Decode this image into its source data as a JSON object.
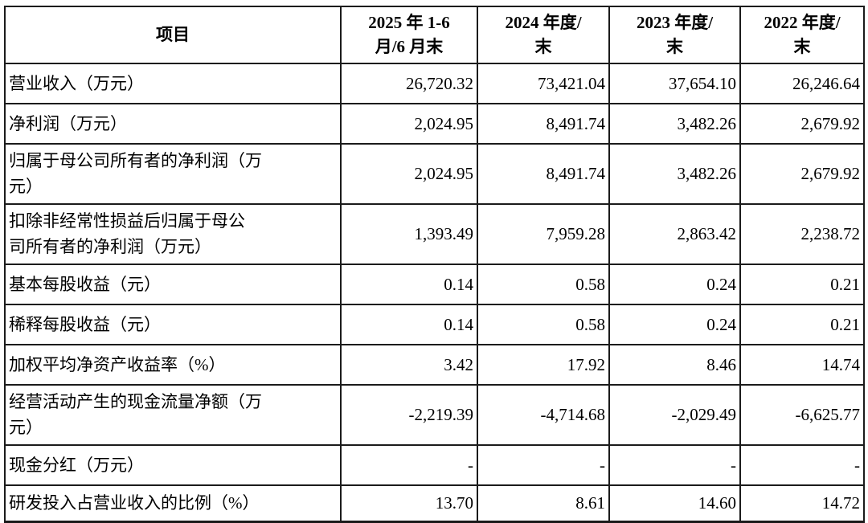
{
  "table": {
    "header": [
      "项目",
      "2025 年 1-6\n月/6 月末",
      "2024 年度/\n末",
      "2023 年度/\n末",
      "2022 年度/\n末"
    ],
    "rows": [
      {
        "label": "营业收入（万元）",
        "values": [
          "26,720.32",
          "73,421.04",
          "37,654.10",
          "26,246.64"
        ]
      },
      {
        "label": "净利润（万元）",
        "values": [
          "2,024.95",
          "8,491.74",
          "3,482.26",
          "2,679.92"
        ]
      },
      {
        "label": "归属于母公司所有者的净利润（万\n元）",
        "values": [
          "2,024.95",
          "8,491.74",
          "3,482.26",
          "2,679.92"
        ]
      },
      {
        "label": "扣除非经常性损益后归属于母公\n司所有者的净利润（万元）",
        "values": [
          "1,393.49",
          "7,959.28",
          "2,863.42",
          "2,238.72"
        ]
      },
      {
        "label": "基本每股收益（元）",
        "values": [
          "0.14",
          "0.58",
          "0.24",
          "0.21"
        ]
      },
      {
        "label": "稀释每股收益（元）",
        "values": [
          "0.14",
          "0.58",
          "0.24",
          "0.21"
        ]
      },
      {
        "label": "加权平均净资产收益率（%）",
        "values": [
          "3.42",
          "17.92",
          "8.46",
          "14.74"
        ]
      },
      {
        "label": "经营活动产生的现金流量净额（万\n元）",
        "values": [
          "-2,219.39",
          "-4,714.68",
          "-2,029.49",
          "-6,625.77"
        ]
      },
      {
        "label": "现金分红（万元）",
        "values": [
          "-",
          "-",
          "-",
          "-"
        ]
      },
      {
        "label": "研发投入占营业收入的比例（%）",
        "values": [
          "13.70",
          "8.61",
          "14.60",
          "14.72"
        ]
      }
    ]
  },
  "colors": {
    "background": "#ffffff",
    "text": "#000000",
    "border": "#1b1b1b"
  }
}
